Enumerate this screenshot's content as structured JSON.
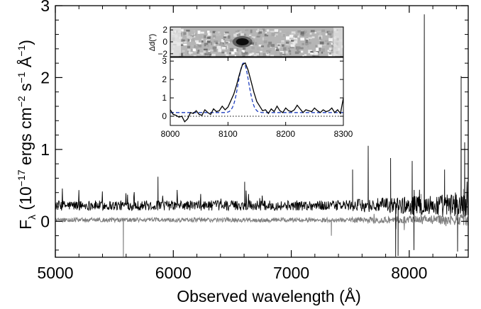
{
  "chart_data": [
    {
      "type": "line",
      "title": "",
      "xlabel": "Observed wavelength (Å)",
      "ylabel_parts": {
        "f": "F",
        "lam": "λ",
        "open": " (10",
        "exp1": "−17",
        "mid1": " ergs cm",
        "exp2": "−2",
        "mid2": " s",
        "exp3": "−1",
        "mid3": " Å",
        "exp4": "−1",
        "close": ")"
      },
      "xlim": [
        5000,
        8500
      ],
      "ylim": [
        -0.5,
        3.0
      ],
      "x_ticks": [
        5000,
        6000,
        7000,
        8000
      ],
      "y_ticks": [
        0,
        1,
        2,
        3
      ],
      "grid": false,
      "series": [
        {
          "role": "spectrum",
          "color": "#000000",
          "baseline": 0.22,
          "noise": 0.07,
          "spikes": [
            {
              "x": 8128,
              "y": 2.88
            },
            {
              "x": 8440,
              "y": 2.02
            },
            {
              "x": 7652,
              "y": 1.05
            },
            {
              "x": 7842,
              "y": 0.88
            },
            {
              "x": 8025,
              "y": 0.84
            },
            {
              "x": 8470,
              "y": 1.1
            },
            {
              "x": 5870,
              "y": 0.62
            },
            {
              "x": 6605,
              "y": 0.55
            },
            {
              "x": 7520,
              "y": 0.72
            },
            {
              "x": 7905,
              "y": -0.48
            },
            {
              "x": 7885,
              "y": -0.5
            },
            {
              "x": 8040,
              "y": -0.4
            },
            {
              "x": 8410,
              "y": -0.42
            },
            {
              "x": 8300,
              "y": 0.72
            }
          ]
        },
        {
          "role": "error",
          "color": "#808080",
          "baseline": 0.02,
          "noise": 0.03,
          "spikes": [
            {
              "x": 5577,
              "y": -0.5
            },
            {
              "x": 7340,
              "y": -0.2
            },
            {
              "x": 7650,
              "y": -0.03
            },
            {
              "x": 8100,
              "y": 0.38
            },
            {
              "x": 8350,
              "y": 0.32
            },
            {
              "x": 8460,
              "y": 0.45
            }
          ]
        }
      ]
    },
    {
      "type": "heatmap",
      "role": "2D spectrum",
      "ylabel": "Δd(″)",
      "ylim": [
        -2.5,
        2.5
      ],
      "y_ticks": [
        -2,
        0,
        2
      ],
      "blob_x": 8125,
      "blob_y": 0
    },
    {
      "type": "line",
      "role": "inset zoom",
      "xlim": [
        8000,
        8300
      ],
      "ylim": [
        -0.5,
        3.2
      ],
      "x_ticks": [
        8000,
        8100,
        8200,
        8300
      ],
      "y_ticks": [
        0,
        1,
        2,
        3
      ],
      "zero_line": "dotted",
      "series": [
        {
          "name_hidden": "data",
          "color": "#000000",
          "x": [
            8000,
            8005,
            8010,
            8015,
            8020,
            8025,
            8030,
            8035,
            8040,
            8045,
            8050,
            8055,
            8060,
            8065,
            8070,
            8075,
            8080,
            8085,
            8090,
            8095,
            8100,
            8105,
            8110,
            8115,
            8120,
            8125,
            8130,
            8135,
            8140,
            8145,
            8150,
            8155,
            8160,
            8165,
            8170,
            8175,
            8180,
            8185,
            8190,
            8195,
            8200,
            8205,
            8210,
            8215,
            8220,
            8225,
            8230,
            8235,
            8240,
            8245,
            8250,
            8255,
            8260,
            8265,
            8270,
            8275,
            8280,
            8285,
            8290,
            8295,
            8300
          ],
          "y": [
            0.35,
            0.1,
            0.05,
            -0.05,
            0.0,
            -0.3,
            -0.15,
            0.2,
            0.15,
            0.3,
            0.1,
            0.05,
            0.35,
            0.2,
            0.1,
            0.4,
            0.25,
            0.3,
            0.55,
            0.35,
            0.5,
            0.85,
            1.2,
            1.7,
            2.3,
            2.8,
            2.9,
            2.5,
            1.9,
            1.3,
            0.8,
            0.55,
            0.3,
            0.35,
            0.15,
            0.4,
            0.25,
            0.55,
            0.3,
            0.2,
            0.45,
            0.3,
            0.25,
            0.35,
            0.6,
            0.4,
            0.2,
            0.35,
            0.3,
            0.25,
            0.45,
            0.3,
            0.2,
            0.35,
            0.25,
            0.3,
            0.45,
            0.2,
            0.35,
            0.15,
            1.0
          ]
        },
        {
          "name_hidden": "gaussian fit",
          "color": "#1f3fbf",
          "style": "dashed",
          "baseline": 0.2,
          "amplitude": 2.7,
          "center": 8127,
          "sigma": 9
        }
      ]
    }
  ]
}
